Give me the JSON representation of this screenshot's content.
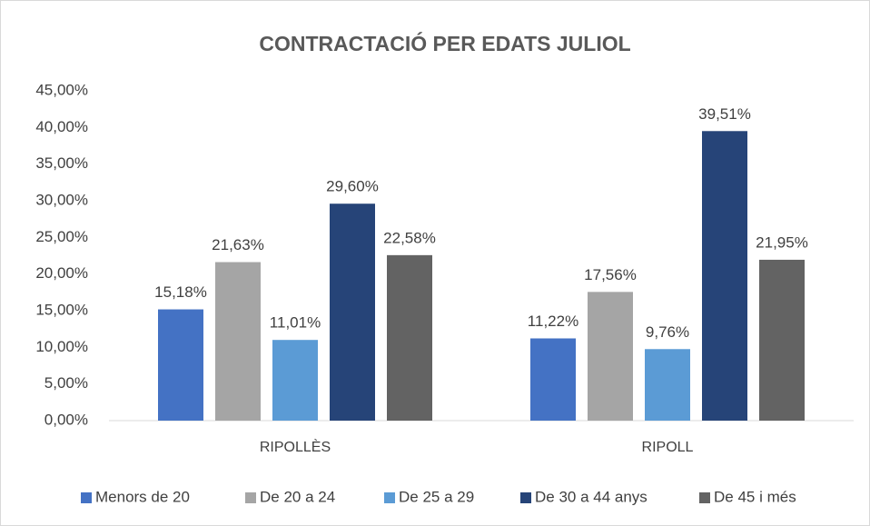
{
  "chart_data": {
    "type": "bar",
    "title": "CONTRACTACIÓ PER EDATS JULIOL",
    "categories": [
      "RIPOLLÈS",
      "RIPOLL"
    ],
    "series": [
      {
        "name": "Menors de 20",
        "color": "#4472c4",
        "values": [
          15.18,
          11.22
        ],
        "value_labels": [
          "15,18%",
          "11,22%"
        ]
      },
      {
        "name": "De 20 a 24",
        "color": "#a5a5a5",
        "values": [
          21.63,
          17.56
        ],
        "value_labels": [
          "21,63%",
          "17,56%"
        ]
      },
      {
        "name": "De 25 a 29",
        "color": "#5b9bd5",
        "values": [
          11.01,
          9.76
        ],
        "value_labels": [
          "11,01%",
          "9,76%"
        ]
      },
      {
        "name": "De 30 a 44 anys",
        "color": "#264478",
        "values": [
          29.6,
          39.51
        ],
        "value_labels": [
          "29,60%",
          "39,51%"
        ]
      },
      {
        "name": "De 45 i més",
        "color": "#636363",
        "values": [
          22.58,
          21.95
        ],
        "value_labels": [
          "22,58%",
          "21,95%"
        ]
      }
    ],
    "ylim": [
      0,
      45
    ],
    "yticks": [
      {
        "value": 0,
        "label": "0,00%"
      },
      {
        "value": 5,
        "label": "5,00%"
      },
      {
        "value": 10,
        "label": "10,00%"
      },
      {
        "value": 15,
        "label": "15,00%"
      },
      {
        "value": 20,
        "label": "20,00%"
      },
      {
        "value": 25,
        "label": "25,00%"
      },
      {
        "value": 30,
        "label": "30,00%"
      },
      {
        "value": 35,
        "label": "35,00%"
      },
      {
        "value": 40,
        "label": "40,00%"
      },
      {
        "value": 45,
        "label": "45,00%"
      }
    ],
    "grid": false,
    "legend": "bottom"
  }
}
